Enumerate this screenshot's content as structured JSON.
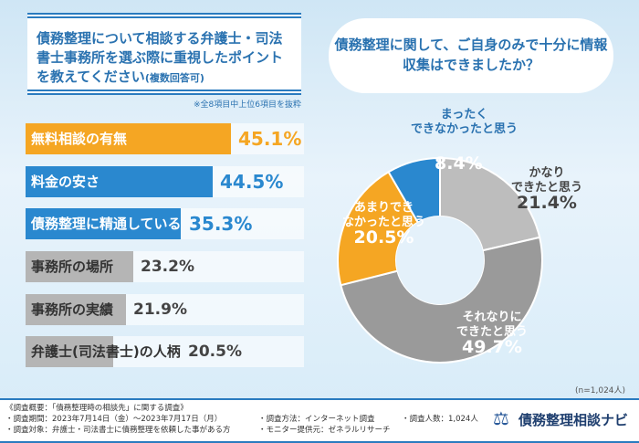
{
  "chart_data": [
    {
      "type": "bar",
      "orientation": "horizontal",
      "title": "債務整理について相談する弁護士・司法書士事務所を選ぶ際に重視したポイントを教えてください",
      "title_suffix": "(複数回答可)",
      "note": "※全8項目中上位6項目を抜粋",
      "categories": [
        "無料相談の有無",
        "料金の安さ",
        "債務整理に精通している",
        "事務所の場所",
        "事務所の実績",
        "弁護士(司法書士)の人柄"
      ],
      "values": [
        45.1,
        44.5,
        35.3,
        23.2,
        21.9,
        20.5
      ],
      "value_labels": [
        "45.1%",
        "44.5%",
        "35.3%",
        "23.2%",
        "21.9%",
        "20.5%"
      ],
      "colors": [
        "#f5a623",
        "#2a88cf",
        "#2a88cf",
        "#b5b5b5",
        "#b5b5b5",
        "#b5b5b5"
      ],
      "unit": "%"
    },
    {
      "type": "pie",
      "donut": true,
      "title": "債務整理に関して、ご自身のみで十分に情報収集はできましたか？",
      "categories": [
        "かなりできたと思う",
        "それなりにできたと思う",
        "あまりできなかったと思う",
        "まったくできなかったと思う"
      ],
      "values": [
        21.4,
        49.7,
        20.5,
        8.4
      ],
      "value_labels": [
        "21.4%",
        "49.7%",
        "20.5%",
        "8.4%"
      ],
      "colors": [
        "#bdbdbd",
        "#9a9a9a",
        "#f5a623",
        "#2a88cf"
      ],
      "n_note": "(n=1,024人)"
    }
  ],
  "footer": {
    "summary": "《調査概要：「債務整理時の相談先」に関する調査》",
    "period": "・調査期間：2023年7月14日（金）～2023年7月17日（月）",
    "method": "・調査方法：インターネット調査",
    "count": "・調査人数：1,024人",
    "target": "・調査対象：弁護士・司法書士に債務整理を依頼した事がある方",
    "provider": "・モニター提供元：ゼネラルリサーチ",
    "logo_text": "債務整理相談ナビ"
  },
  "pie_labels": [
    {
      "line1": "かなり",
      "line2": "できたと思う"
    },
    {
      "line1": "それなりに",
      "line2": "できたと思う"
    },
    {
      "line1": "あまりでき",
      "line2": "なかったと思う"
    },
    {
      "line1": "まったく",
      "line2": "できなかったと思う"
    }
  ]
}
